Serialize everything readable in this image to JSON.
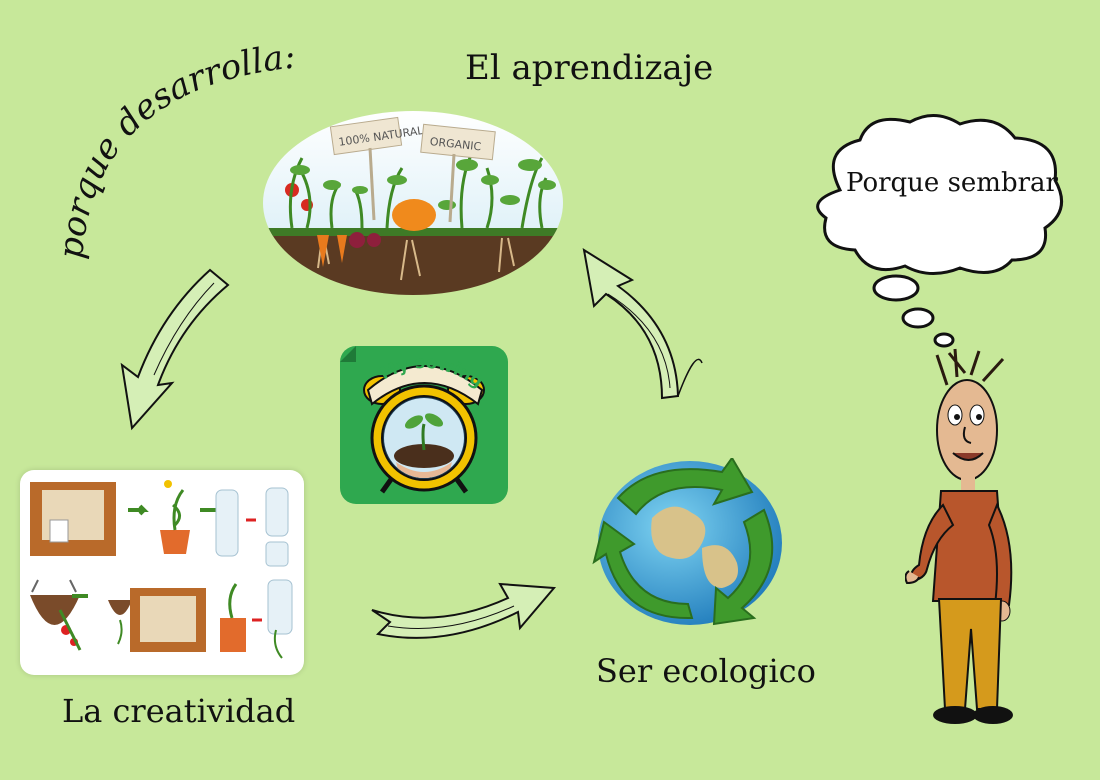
{
  "heading": "porque desarrolla:",
  "nodes": {
    "learning": "El aprendizaje",
    "creativity": "La creatividad",
    "ecology": "Ser ecologico"
  },
  "thought_bubble": "Porque sembrar",
  "app_icon": {
    "label": "My sowing",
    "icon": "alarm-clock-with-seedling-icon",
    "colors": {
      "background": "#2fa84f",
      "clock": "#f2c200"
    }
  },
  "garden_signs": [
    "100% NATURAL",
    "ORGANIC"
  ],
  "arrows": [
    {
      "from": "learning",
      "to": "creativity",
      "icon": "curved-arrow-icon"
    },
    {
      "from": "creativity",
      "to": "ecology",
      "icon": "curved-arrow-icon"
    },
    {
      "from": "ecology",
      "to": "learning",
      "icon": "curved-arrow-icon"
    }
  ],
  "colors": {
    "background": "#c7e89a"
  }
}
